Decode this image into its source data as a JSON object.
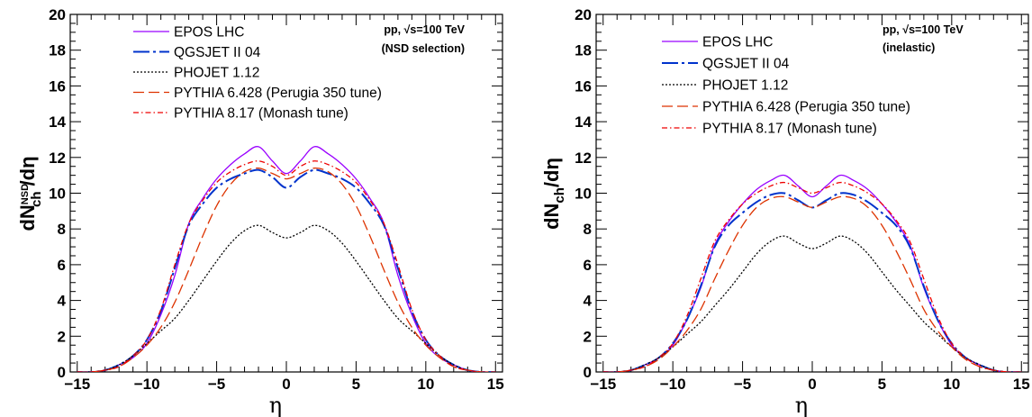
{
  "chart_data": [
    {
      "type": "line",
      "annotation": [
        "pp,  √s=100 TeV",
        "(NSD selection)"
      ],
      "xlabel": "η",
      "ylabel": "dN^NSD_ch/dη",
      "xlim": [
        -15.5,
        15.5
      ],
      "ylim": [
        0,
        20
      ],
      "x_ticks": [
        -15,
        -10,
        -5,
        0,
        5,
        10,
        15
      ],
      "x_tick_labels": [
        "−15",
        "−10",
        "−5",
        "0",
        "5",
        "10",
        "15"
      ],
      "y_ticks": [
        0,
        2,
        4,
        6,
        8,
        10,
        12,
        14,
        16,
        18,
        20
      ],
      "y_tick_labels": [
        "0",
        "2",
        "4",
        "6",
        "8",
        "10",
        "12",
        "14",
        "16",
        "18",
        "20"
      ],
      "grid": false,
      "legend": "top-left",
      "x": [
        -15,
        -14,
        -13,
        -12,
        -11,
        -10,
        -9,
        -8,
        -7,
        -6,
        -5,
        -4,
        -3,
        -2,
        -1,
        0,
        1,
        2,
        3,
        4,
        5,
        6,
        7,
        8,
        9,
        10,
        11,
        12,
        13,
        14,
        15
      ],
      "series": [
        {
          "name": "EPOS LHC",
          "color": "#9900ff",
          "dash": "solid",
          "values": [
            0,
            0,
            0.1,
            0.4,
            0.8,
            1.6,
            3.2,
            5.4,
            8.3,
            9.7,
            10.8,
            11.6,
            12.2,
            12.6,
            11.8,
            11.1,
            11.8,
            12.6,
            12.2,
            11.6,
            10.8,
            9.7,
            8.3,
            5.4,
            3.2,
            1.6,
            0.8,
            0.4,
            0.1,
            0,
            0
          ]
        },
        {
          "name": "QGSJET II 04",
          "color": "#0033cc",
          "dash": "longdash",
          "values": [
            0,
            0,
            0.1,
            0.4,
            0.9,
            1.8,
            3.4,
            5.8,
            8.2,
            9.4,
            10.3,
            10.8,
            11.1,
            11.3,
            10.9,
            10.3,
            10.9,
            11.3,
            11.1,
            10.8,
            10.3,
            9.4,
            8.2,
            5.8,
            3.4,
            1.8,
            0.9,
            0.4,
            0.1,
            0,
            0
          ]
        },
        {
          "name": "PHOJET 1.12",
          "color": "#000000",
          "dash": "dotted",
          "values": [
            0,
            0,
            0.1,
            0.4,
            0.9,
            1.6,
            2.3,
            3.0,
            4.0,
            5.1,
            6.2,
            7.2,
            7.9,
            8.2,
            7.8,
            7.5,
            7.8,
            8.2,
            7.9,
            7.2,
            6.2,
            5.1,
            4.0,
            3.0,
            2.3,
            1.6,
            0.9,
            0.4,
            0.1,
            0,
            0
          ]
        },
        {
          "name": "PYTHIA 6.428 (Perugia 350 tune)",
          "color": "#dd3300",
          "dash": "dashed",
          "values": [
            0,
            0,
            0.1,
            0.3,
            0.8,
            1.5,
            2.5,
            3.9,
            5.7,
            7.6,
            9.3,
            10.5,
            11.2,
            11.4,
            11.1,
            10.8,
            11.1,
            11.4,
            11.2,
            10.5,
            9.3,
            7.6,
            5.7,
            3.9,
            2.5,
            1.5,
            0.8,
            0.3,
            0.1,
            0,
            0
          ]
        },
        {
          "name": "PYTHIA 8.17 (Monash tune)",
          "color": "#ee0000",
          "dash": "dashdot",
          "values": [
            0,
            0,
            0.1,
            0.3,
            0.9,
            1.8,
            3.5,
            6.0,
            8.3,
            9.6,
            10.6,
            11.2,
            11.6,
            11.8,
            11.5,
            11.0,
            11.5,
            11.8,
            11.6,
            11.2,
            10.6,
            9.6,
            8.3,
            6.0,
            3.5,
            1.8,
            0.9,
            0.3,
            0.1,
            0,
            0
          ]
        }
      ]
    },
    {
      "type": "line",
      "annotation": [
        "pp,  √s=100 TeV",
        "(inelastic)"
      ],
      "xlabel": "η",
      "ylabel": "dN_ch/dη",
      "xlim": [
        -15.5,
        15.5
      ],
      "ylim": [
        0,
        20
      ],
      "x_ticks": [
        -15,
        -10,
        -5,
        0,
        5,
        10,
        15
      ],
      "x_tick_labels": [
        "−15",
        "−10",
        "−5",
        "0",
        "5",
        "10",
        "15"
      ],
      "y_ticks": [
        0,
        2,
        4,
        6,
        8,
        10,
        12,
        14,
        16,
        18,
        20
      ],
      "y_tick_labels": [
        "0",
        "2",
        "4",
        "6",
        "8",
        "10",
        "12",
        "14",
        "16",
        "18",
        "20"
      ],
      "grid": false,
      "legend": "top-right",
      "x": [
        -15,
        -14,
        -13,
        -12,
        -11,
        -10,
        -9,
        -8,
        -7,
        -6,
        -5,
        -4,
        -3,
        -2,
        -1,
        0,
        1,
        2,
        3,
        4,
        5,
        6,
        7,
        8,
        9,
        10,
        11,
        12,
        13,
        14,
        15
      ],
      "series": [
        {
          "name": "EPOS LHC",
          "color": "#9900ff",
          "dash": "solid",
          "values": [
            0,
            0,
            0.1,
            0.4,
            0.8,
            1.5,
            2.9,
            4.7,
            7.1,
            8.4,
            9.4,
            10.2,
            10.7,
            11.0,
            10.4,
            9.8,
            10.4,
            11.0,
            10.7,
            10.2,
            9.4,
            8.4,
            7.1,
            4.7,
            2.9,
            1.5,
            0.8,
            0.4,
            0.1,
            0,
            0
          ]
        },
        {
          "name": "QGSJET II 04",
          "color": "#0033cc",
          "dash": "longdash",
          "values": [
            0,
            0,
            0.1,
            0.4,
            0.8,
            1.6,
            2.9,
            4.8,
            7.0,
            8.2,
            8.9,
            9.5,
            9.9,
            10.0,
            9.6,
            9.2,
            9.6,
            10.0,
            9.9,
            9.5,
            8.9,
            8.2,
            7.0,
            4.8,
            2.9,
            1.6,
            0.8,
            0.4,
            0.1,
            0,
            0
          ]
        },
        {
          "name": "PHOJET 1.12",
          "color": "#000000",
          "dash": "dotted",
          "values": [
            0,
            0,
            0.1,
            0.4,
            0.8,
            1.4,
            2.1,
            2.8,
            3.7,
            4.6,
            5.6,
            6.6,
            7.3,
            7.6,
            7.2,
            6.9,
            7.2,
            7.6,
            7.3,
            6.6,
            5.6,
            4.6,
            3.7,
            2.8,
            2.1,
            1.4,
            0.8,
            0.4,
            0.1,
            0,
            0
          ]
        },
        {
          "name": "PYTHIA 6.428 (Perugia 350 tune)",
          "color": "#dd3300",
          "dash": "dashed",
          "values": [
            0,
            0,
            0.1,
            0.3,
            0.7,
            1.4,
            2.3,
            3.5,
            5.2,
            6.8,
            8.2,
            9.2,
            9.7,
            9.8,
            9.5,
            9.2,
            9.5,
            9.8,
            9.7,
            9.2,
            8.2,
            6.8,
            5.2,
            3.5,
            2.3,
            1.4,
            0.7,
            0.3,
            0.1,
            0,
            0
          ]
        },
        {
          "name": "PYTHIA 8.17 (Monash tune)",
          "color": "#ee0000",
          "dash": "dashdot",
          "values": [
            0,
            0,
            0.1,
            0.3,
            0.8,
            1.6,
            3.1,
            5.2,
            7.3,
            8.5,
            9.4,
            10.0,
            10.4,
            10.6,
            10.3,
            10.0,
            10.3,
            10.6,
            10.4,
            10.0,
            9.4,
            8.5,
            7.3,
            5.2,
            3.1,
            1.6,
            0.8,
            0.3,
            0.1,
            0,
            0
          ]
        }
      ]
    }
  ]
}
